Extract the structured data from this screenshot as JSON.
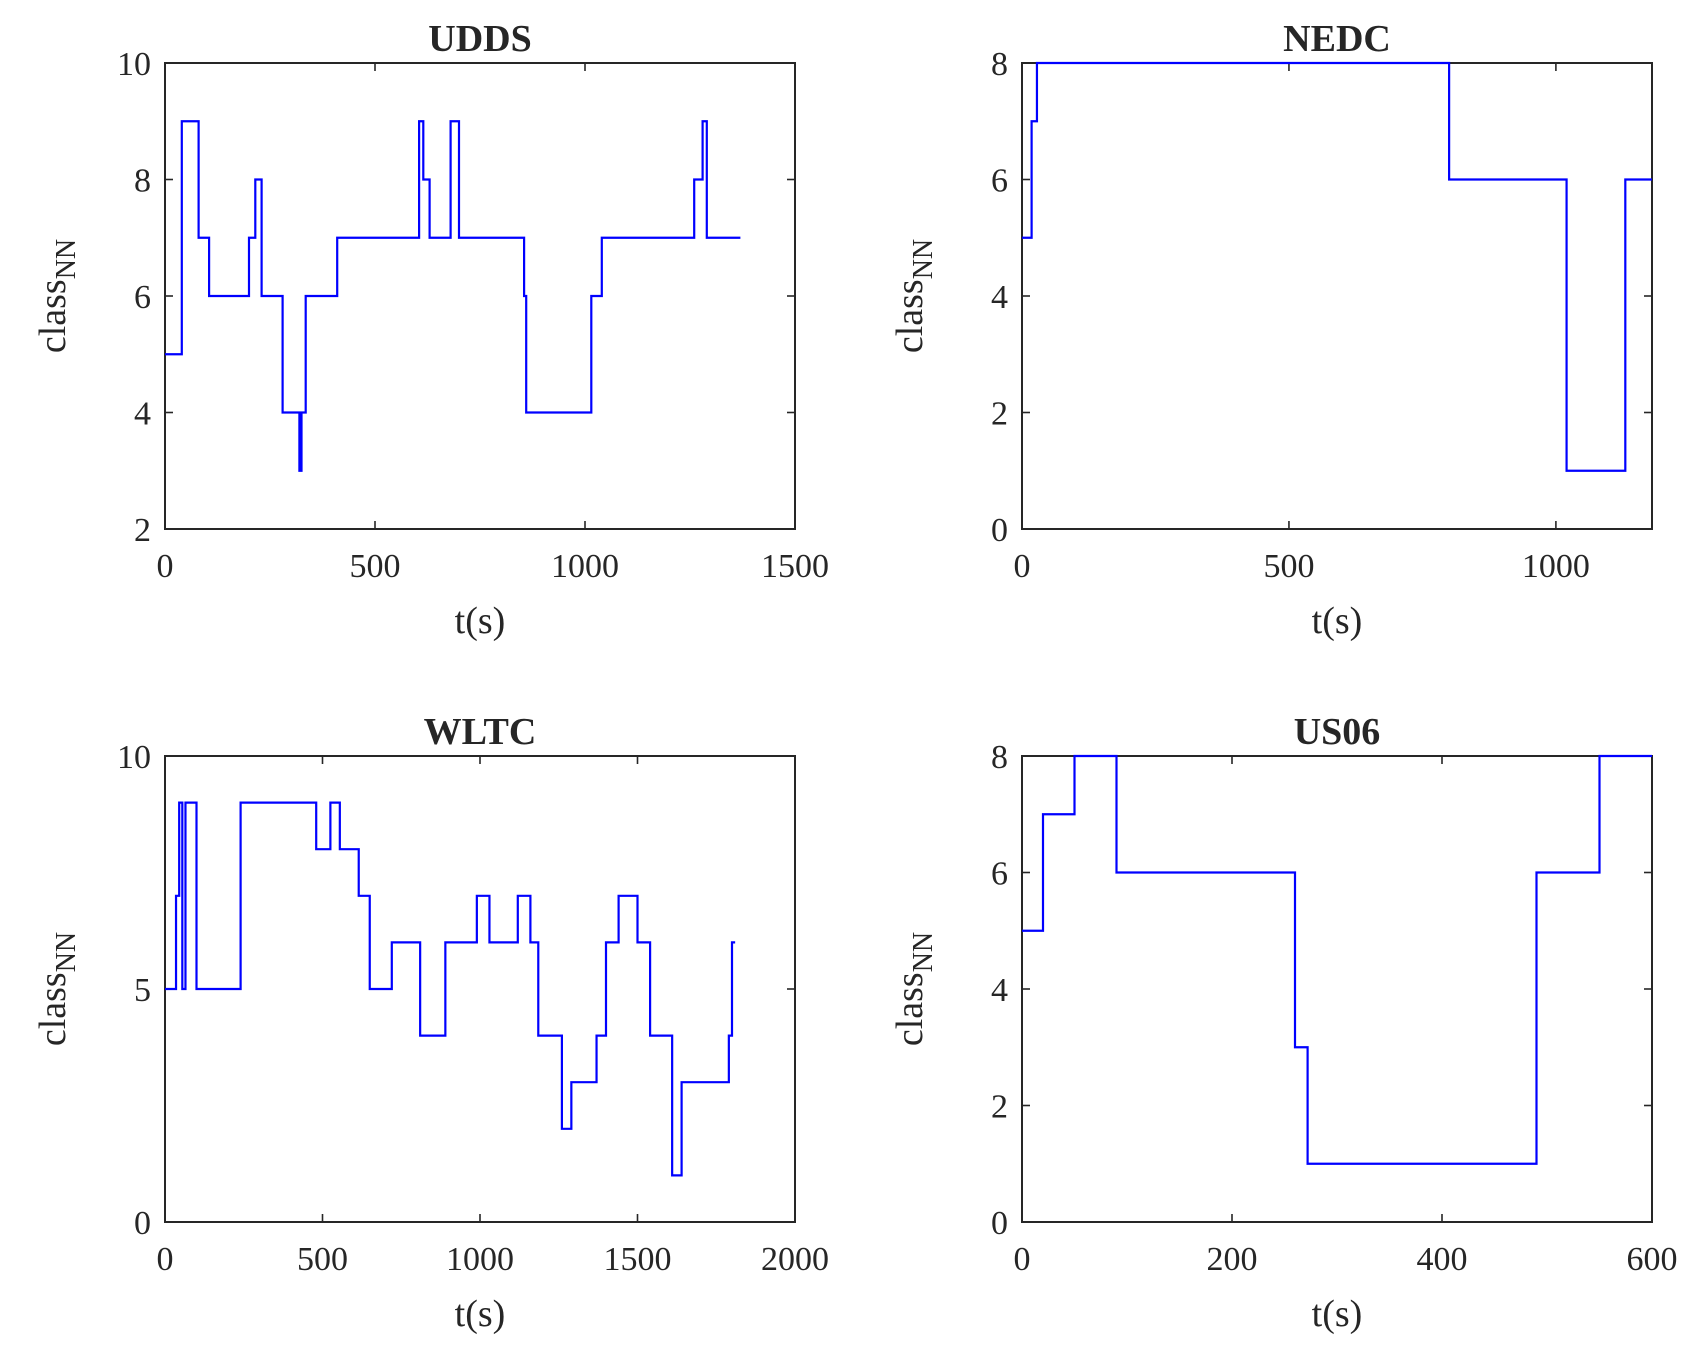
{
  "colors": {
    "line": "#0000ff",
    "axes": "#262626",
    "background": "#ffffff"
  },
  "chart_data": [
    {
      "type": "line",
      "title": "UDDS",
      "xlabel": "t(s)",
      "ylabel": "class",
      "ylabel_sub": "NN",
      "xlim": [
        0,
        1500
      ],
      "ylim": [
        2,
        10
      ],
      "xticks": [
        0,
        500,
        1000,
        1500
      ],
      "yticks": [
        2,
        4,
        6,
        8,
        10
      ],
      "series": [
        {
          "name": "class_NN",
          "x": [
            0,
            40,
            40,
            80,
            80,
            90,
            90,
            105,
            105,
            200,
            200,
            215,
            215,
            230,
            230,
            280,
            280,
            320,
            320,
            325,
            325,
            335,
            335,
            410,
            410,
            605,
            605,
            615,
            615,
            630,
            630,
            680,
            680,
            700,
            700,
            855,
            855,
            860,
            860,
            1015,
            1015,
            1040,
            1040,
            1260,
            1260,
            1280,
            1280,
            1290,
            1290,
            1370
          ],
          "y": [
            5,
            5,
            9,
            9,
            7,
            7,
            7,
            7,
            6,
            6,
            7,
            7,
            8,
            8,
            6,
            6,
            4,
            4,
            3,
            3,
            4,
            4,
            6,
            6,
            7,
            7,
            9,
            9,
            8,
            8,
            7,
            7,
            9,
            9,
            7,
            7,
            6,
            6,
            4,
            4,
            6,
            6,
            7,
            7,
            8,
            8,
            9,
            9,
            7,
            7
          ]
        }
      ]
    },
    {
      "type": "line",
      "title": "NEDC",
      "xlabel": "t(s)",
      "ylabel": "class",
      "ylabel_sub": "NN",
      "xlim": [
        0,
        1180
      ],
      "ylim": [
        0,
        8
      ],
      "xticks": [
        0,
        500,
        1000
      ],
      "yticks": [
        0,
        2,
        4,
        6,
        8
      ],
      "series": [
        {
          "name": "class_NN",
          "x": [
            0,
            18,
            18,
            28,
            28,
            800,
            800,
            1020,
            1020,
            1130,
            1130,
            1180
          ],
          "y": [
            5,
            5,
            7,
            7,
            8,
            8,
            6,
            6,
            1,
            1,
            6,
            6
          ]
        }
      ]
    },
    {
      "type": "line",
      "title": "WLTC",
      "xlabel": "t(s)",
      "ylabel": "class",
      "ylabel_sub": "NN",
      "xlim": [
        0,
        2000
      ],
      "ylim": [
        0,
        10
      ],
      "xticks": [
        0,
        500,
        1000,
        1500,
        2000
      ],
      "yticks": [
        0,
        5,
        10
      ],
      "series": [
        {
          "name": "class_NN",
          "x": [
            0,
            35,
            35,
            45,
            45,
            55,
            55,
            65,
            65,
            100,
            100,
            240,
            240,
            480,
            480,
            525,
            525,
            555,
            555,
            615,
            615,
            650,
            650,
            720,
            720,
            810,
            810,
            890,
            890,
            990,
            990,
            1030,
            1030,
            1120,
            1120,
            1160,
            1160,
            1185,
            1185,
            1260,
            1260,
            1290,
            1290,
            1370,
            1370,
            1400,
            1400,
            1440,
            1440,
            1500,
            1500,
            1540,
            1540,
            1610,
            1610,
            1640,
            1640,
            1790,
            1790,
            1800,
            1800,
            1810
          ],
          "y": [
            5,
            5,
            7,
            7,
            9,
            9,
            5,
            5,
            9,
            9,
            5,
            5,
            9,
            9,
            8,
            8,
            9,
            9,
            8,
            8,
            7,
            7,
            5,
            5,
            6,
            6,
            4,
            4,
            6,
            6,
            7,
            7,
            6,
            6,
            7,
            7,
            6,
            6,
            4,
            4,
            2,
            2,
            3,
            3,
            4,
            4,
            6,
            6,
            7,
            7,
            6,
            6,
            4,
            4,
            1,
            1,
            3,
            3,
            4,
            4,
            6,
            6
          ]
        }
      ]
    },
    {
      "type": "line",
      "title": "US06",
      "xlabel": "t(s)",
      "ylabel": "class",
      "ylabel_sub": "NN",
      "xlim": [
        0,
        600
      ],
      "ylim": [
        0,
        8
      ],
      "xticks": [
        0,
        200,
        400,
        600
      ],
      "yticks": [
        0,
        2,
        4,
        6,
        8
      ],
      "series": [
        {
          "name": "class_NN",
          "x": [
            0,
            20,
            20,
            50,
            50,
            90,
            90,
            260,
            260,
            268,
            268,
            272,
            272,
            490,
            490,
            550,
            550,
            600
          ],
          "y": [
            5,
            5,
            7,
            7,
            8,
            8,
            6,
            6,
            3,
            3,
            3,
            3,
            1,
            1,
            6,
            6,
            8,
            8
          ]
        }
      ]
    }
  ]
}
